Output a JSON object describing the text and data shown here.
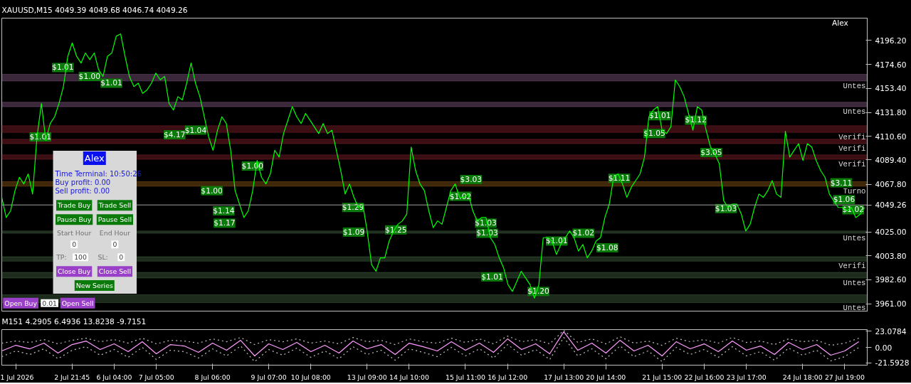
{
  "chart_data": [
    {
      "type": "line",
      "title": "XAUUSD,M15  4049.39 4049.68 4046.74 4049.26",
      "tick_labels": "y",
      "categories": [
        null,
        null,
        null,
        null,
        null,
        null,
        null,
        null,
        null,
        null,
        null,
        null,
        null,
        null,
        null,
        null,
        null,
        null,
        null,
        null,
        null,
        null,
        null,
        null,
        null,
        null,
        null,
        null,
        null,
        null,
        null,
        null,
        null,
        null,
        null,
        null,
        null,
        null,
        null,
        null,
        null,
        null,
        null,
        null,
        null,
        null,
        null,
        null,
        null,
        null,
        null,
        null,
        null,
        null,
        null,
        null,
        null,
        null,
        null,
        null,
        null,
        null,
        null,
        null,
        null,
        null,
        null,
        null,
        null,
        null,
        null,
        null,
        null,
        null,
        null,
        null,
        null,
        null,
        null,
        null,
        null,
        null,
        null,
        null,
        null,
        null,
        null,
        null,
        null,
        null,
        null,
        null,
        null,
        null,
        null,
        null,
        null,
        null,
        null,
        null,
        null,
        null,
        null,
        null,
        null,
        null,
        null,
        null,
        null,
        null,
        null,
        null,
        null,
        null,
        null,
        null,
        null,
        null,
        null,
        null,
        null,
        null,
        null,
        null,
        null,
        null,
        null,
        null,
        null,
        null,
        null,
        null,
        null,
        null,
        null,
        null,
        null,
        null,
        null,
        null,
        null,
        null,
        null,
        null,
        null,
        null,
        null,
        null,
        null,
        null,
        null,
        null,
        null,
        null,
        null,
        null,
        null,
        null,
        null,
        null,
        null,
        null,
        null,
        null,
        null,
        null,
        null,
        null,
        null,
        null,
        null,
        null,
        null,
        null,
        null,
        null,
        null,
        null,
        null,
        null,
        null,
        null,
        null,
        null,
        null,
        null,
        null,
        null,
        null,
        null,
        null,
        null,
        null,
        null,
        null,
        null,
        null
      ],
      "ylim": [
        3953.8,
        4216.1
      ],
      "yticks": [
        {
          "value": 4196.2,
          "label": "4196.20"
        },
        {
          "value": 4174.6,
          "label": "4174.60"
        },
        {
          "value": 4153.4,
          "label": "4153.40"
        },
        {
          "value": 4131.8,
          "label": "4131.80"
        },
        {
          "value": 4110.6,
          "label": "4110.60"
        },
        {
          "value": 4089.4,
          "label": "4089.40"
        },
        {
          "value": 4067.8,
          "label": "4067.80"
        },
        {
          "value": 4025.0,
          "label": "4025.00"
        },
        {
          "value": 4003.8,
          "label": "4003.80"
        },
        {
          "value": 3982.6,
          "label": "3982.60"
        },
        {
          "value": 3961.0,
          "label": "3961.00"
        }
      ],
      "series": [
        {
          "color": "#00ff00",
          "values": [
            4056,
            4038,
            4044,
            4062,
            4074,
            4068,
            4077,
            4059,
            4110,
            4140,
            4107,
            4122,
            4128,
            4140,
            4155,
            4182,
            4194,
            4182,
            4176,
            4185,
            4179,
            4185,
            4170,
            4164,
            4182,
            4185,
            4200,
            4202,
            4182,
            4164,
            4155,
            4158,
            4149,
            4152,
            4158,
            4167,
            4161,
            4164,
            4140,
            4134,
            4146,
            4143,
            4158,
            4176,
            4158,
            4146,
            4128,
            4110,
            4098,
            4116,
            4128,
            4122,
            4098,
            4062,
            4050,
            4038,
            4044,
            4062,
            4089,
            4074,
            4068,
            4077,
            4098,
            4092,
            4113,
            4125,
            4137,
            4128,
            4122,
            4131,
            4125,
            4119,
            4113,
            4122,
            4113,
            4116,
            4098,
            4080,
            4059,
            4068,
            4056,
            4047,
            4050,
            4026,
            3996,
            3990,
            4002,
            4002,
            4017,
            4026,
            4032,
            4035,
            4041,
            4101,
            4080,
            4068,
            4062,
            4044,
            4029,
            4035,
            4032,
            4047,
            4062,
            4068,
            4056,
            4056,
            4059,
            4044,
            4035,
            4038,
            4038,
            4020,
            4014,
            4002,
            3993,
            3978,
            3972,
            3981,
            3990,
            3984,
            3978,
            3966,
            3978,
            4020,
            4020,
            4017,
            4005,
            4014,
            4020,
            4026,
            4020,
            4008,
            4014,
            4002,
            4008,
            4017,
            4020,
            4038,
            4050,
            4074,
            4077,
            4068,
            4056,
            4065,
            4071,
            4077,
            4092,
            4128,
            4134,
            4137,
            4116,
            4113,
            4119,
            4161,
            4155,
            4146,
            4131,
            4116,
            4137,
            4134,
            4116,
            4101,
            4095,
            4086,
            4053,
            4047,
            4050,
            4050,
            4041,
            4026,
            4032,
            4047,
            4059,
            4056,
            4062,
            4071,
            4059,
            4056,
            4115,
            4092,
            4098,
            4104,
            4089,
            4104,
            4101,
            4089,
            4080,
            4074,
            4059,
            4053,
            4047,
            4047,
            4044,
            4047,
            4038,
            4041,
            4047
          ]
        }
      ],
      "ref_lines": [
        {
          "axis": "y",
          "value": 4049.26,
          "label": "4049.26",
          "color": "#a0a0a0"
        }
      ],
      "bands": [
        {
          "axis": "y",
          "from": 4160,
          "to": 4166,
          "label": "Untes",
          "color": "#c080c0"
        },
        {
          "axis": "y",
          "from": 4137,
          "to": 4141,
          "label": "Untes",
          "color": "#c080c0"
        },
        {
          "axis": "y",
          "from": 4114,
          "to": 4120,
          "label": "Verifi",
          "color": "#c03040"
        },
        {
          "axis": "y",
          "from": 4104,
          "to": 4108,
          "label": "Verifi",
          "color": "#c03040"
        },
        {
          "axis": "y",
          "from": 4090,
          "to": 4094,
          "label": "Verifi",
          "color": "#c03040"
        },
        {
          "axis": "y",
          "from": 4066,
          "to": 4070,
          "label": "Turno",
          "color": "#d08020"
        },
        {
          "axis": "y",
          "from": 4024,
          "to": 4026,
          "label": "Untes",
          "color": "#609060"
        },
        {
          "axis": "y",
          "from": 3999,
          "to": 4003,
          "label": "Verifi",
          "color": "#609060"
        },
        {
          "axis": "y",
          "from": 3984,
          "to": 3989,
          "label": "Untes",
          "color": "#609060"
        },
        {
          "axis": "y",
          "from": 3962,
          "to": 3969,
          "label": "Untes",
          "color": "#609060"
        }
      ],
      "annotations": [
        "Alex",
        "Alex",
        "Time Terminal: 10:50:26",
        "Buy profit: 0.00",
        "Sell profit: 0.00",
        "Trade Buy",
        "Trade Sell",
        "Pause Buy",
        "Pause Sell",
        "Start Hour",
        "End Hour",
        "0",
        "0",
        "TP:",
        "100",
        "SL:",
        "0",
        "Close Buy",
        "Close Sell",
        "New Series",
        "Open Buy",
        "0.01",
        "Open Sell",
        {
          "text": "$1.01",
          "y": 4110
        },
        {
          "text": "$1.01",
          "y": 4172
        },
        {
          "text": "$1.00",
          "y": 4164
        },
        {
          "text": "$1.01",
          "y": 4158
        },
        {
          "text": "$4.17",
          "y": 4112
        },
        {
          "text": "$1.04",
          "y": 4116
        },
        {
          "text": "$1.00",
          "y": 4084
        },
        {
          "text": "$1.00",
          "y": 4062
        },
        {
          "text": "$1.14",
          "y": 4044
        },
        {
          "text": "$1.17",
          "y": 4033
        },
        {
          "text": "$1.29",
          "y": 4047
        },
        {
          "text": "$1.09",
          "y": 4025
        },
        {
          "text": "$1.25",
          "y": 4027
        },
        {
          "text": "$3.03",
          "y": 4072
        },
        {
          "text": "$1.02",
          "y": 4057
        },
        {
          "text": "$1.03",
          "y": 4033
        },
        {
          "text": "$1.03",
          "y": 4024
        },
        {
          "text": "$1.01",
          "y": 3985
        },
        {
          "text": "$1.20",
          "y": 3972
        },
        {
          "text": "$1.01",
          "y": 4017
        },
        {
          "text": "$1.02",
          "y": 4024
        },
        {
          "text": "$1.08",
          "y": 4011
        },
        {
          "text": "$1.11",
          "y": 4073
        },
        {
          "text": "$1.01",
          "y": 4129
        },
        {
          "text": "$1.05",
          "y": 4113
        },
        {
          "text": "$1.12",
          "y": 4125
        },
        {
          "text": "$3.05",
          "y": 4096
        },
        {
          "text": "$1.03",
          "y": 4046
        },
        {
          "text": "$3.11",
          "y": 4069
        },
        {
          "text": "$1.06",
          "y": 4054
        },
        {
          "text": "$1.02",
          "y": 4045
        }
      ]
    },
    {
      "type": "line",
      "title": "M151 4.2905 6.4936 13.8238 -9.7151",
      "ylim": [
        -25.0,
        25.1
      ],
      "categories": [
        null,
        "1 Jul 2026",
        null,
        null,
        null,
        "2 Jul 21:45",
        null,
        null,
        "6 Jul 04:00",
        null,
        null,
        "7 Jul 05:00",
        null,
        null,
        null,
        "8 Jul 06:00",
        null,
        null,
        null,
        "9 Jul 07:00",
        null,
        null,
        "10 Jul 08:00",
        null,
        null,
        null,
        "13 Jul 09:00",
        null,
        null,
        "14 Jul 10:00",
        null,
        null,
        null,
        "15 Jul 11:00",
        null,
        null,
        "16 Jul 12:00",
        null,
        null,
        null,
        "17 Jul 13:00",
        null,
        null,
        "20 Jul 14:00",
        null,
        null,
        null,
        "21 Jul 15:00",
        null,
        null,
        "22 Jul 16:00",
        null,
        null,
        "23 Jul 17:00",
        null,
        null,
        null,
        "24 Jul 18:00",
        null,
        null,
        "27 Jul 19:00",
        null
      ],
      "yticks": [
        {
          "value": 23.0784,
          "label": "23.0784"
        },
        {
          "value": 0,
          "label": "0.00"
        },
        {
          "value": -21.5928,
          "label": "-21.5928"
        }
      ],
      "series": [
        {
          "color": "#c0c0c0",
          "line_style": "dotted",
          "values": [
            6,
            9,
            7,
            11,
            5,
            10,
            13,
            8,
            11,
            6,
            13,
            5,
            10,
            9,
            6,
            12,
            8,
            14,
            4,
            11,
            8,
            12,
            6,
            9,
            5,
            14,
            8,
            10,
            4,
            12,
            8,
            6,
            13,
            7,
            12,
            5,
            16,
            8,
            11,
            5,
            24,
            7,
            12,
            5,
            15,
            6,
            9,
            3,
            13,
            8,
            11,
            6,
            14,
            7,
            9,
            4,
            12,
            8,
            10,
            3,
            6,
            13
          ]
        },
        {
          "color": "#c0c0c0",
          "line_style": "dotted",
          "values": [
            -13,
            -5,
            -10,
            -2,
            -16,
            -4,
            1,
            -11,
            -3,
            -14,
            0,
            -17,
            -4,
            -6,
            -15,
            -2,
            -12,
            2,
            -20,
            -3,
            -11,
            -1,
            -14,
            -5,
            -16,
            1,
            -10,
            -4,
            -18,
            -2,
            -7,
            -13,
            0,
            -12,
            -2,
            -15,
            4,
            -11,
            -3,
            -17,
            14,
            -12,
            -2,
            -16,
            2,
            -13,
            -5,
            -20,
            0,
            -10,
            -3,
            -14,
            1,
            -12,
            -6,
            -18,
            -1,
            -11,
            -4,
            -19,
            -13,
            0
          ]
        },
        {
          "color": "#ff9cff",
          "line_style": "solid",
          "values": [
            -5,
            3,
            -2,
            6,
            -8,
            4,
            9,
            -3,
            5,
            -6,
            8,
            -9,
            4,
            2,
            -7,
            6,
            -4,
            10,
            -12,
            5,
            -3,
            7,
            -6,
            3,
            -8,
            9,
            -2,
            4,
            -10,
            6,
            1,
            -5,
            8,
            -4,
            6,
            -7,
            12,
            -3,
            5,
            -9,
            22,
            -4,
            6,
            -8,
            10,
            -5,
            3,
            -12,
            8,
            -2,
            5,
            -6,
            9,
            -4,
            2,
            -10,
            7,
            -3,
            4,
            -11,
            -5,
            8
          ]
        }
      ]
    }
  ]
}
